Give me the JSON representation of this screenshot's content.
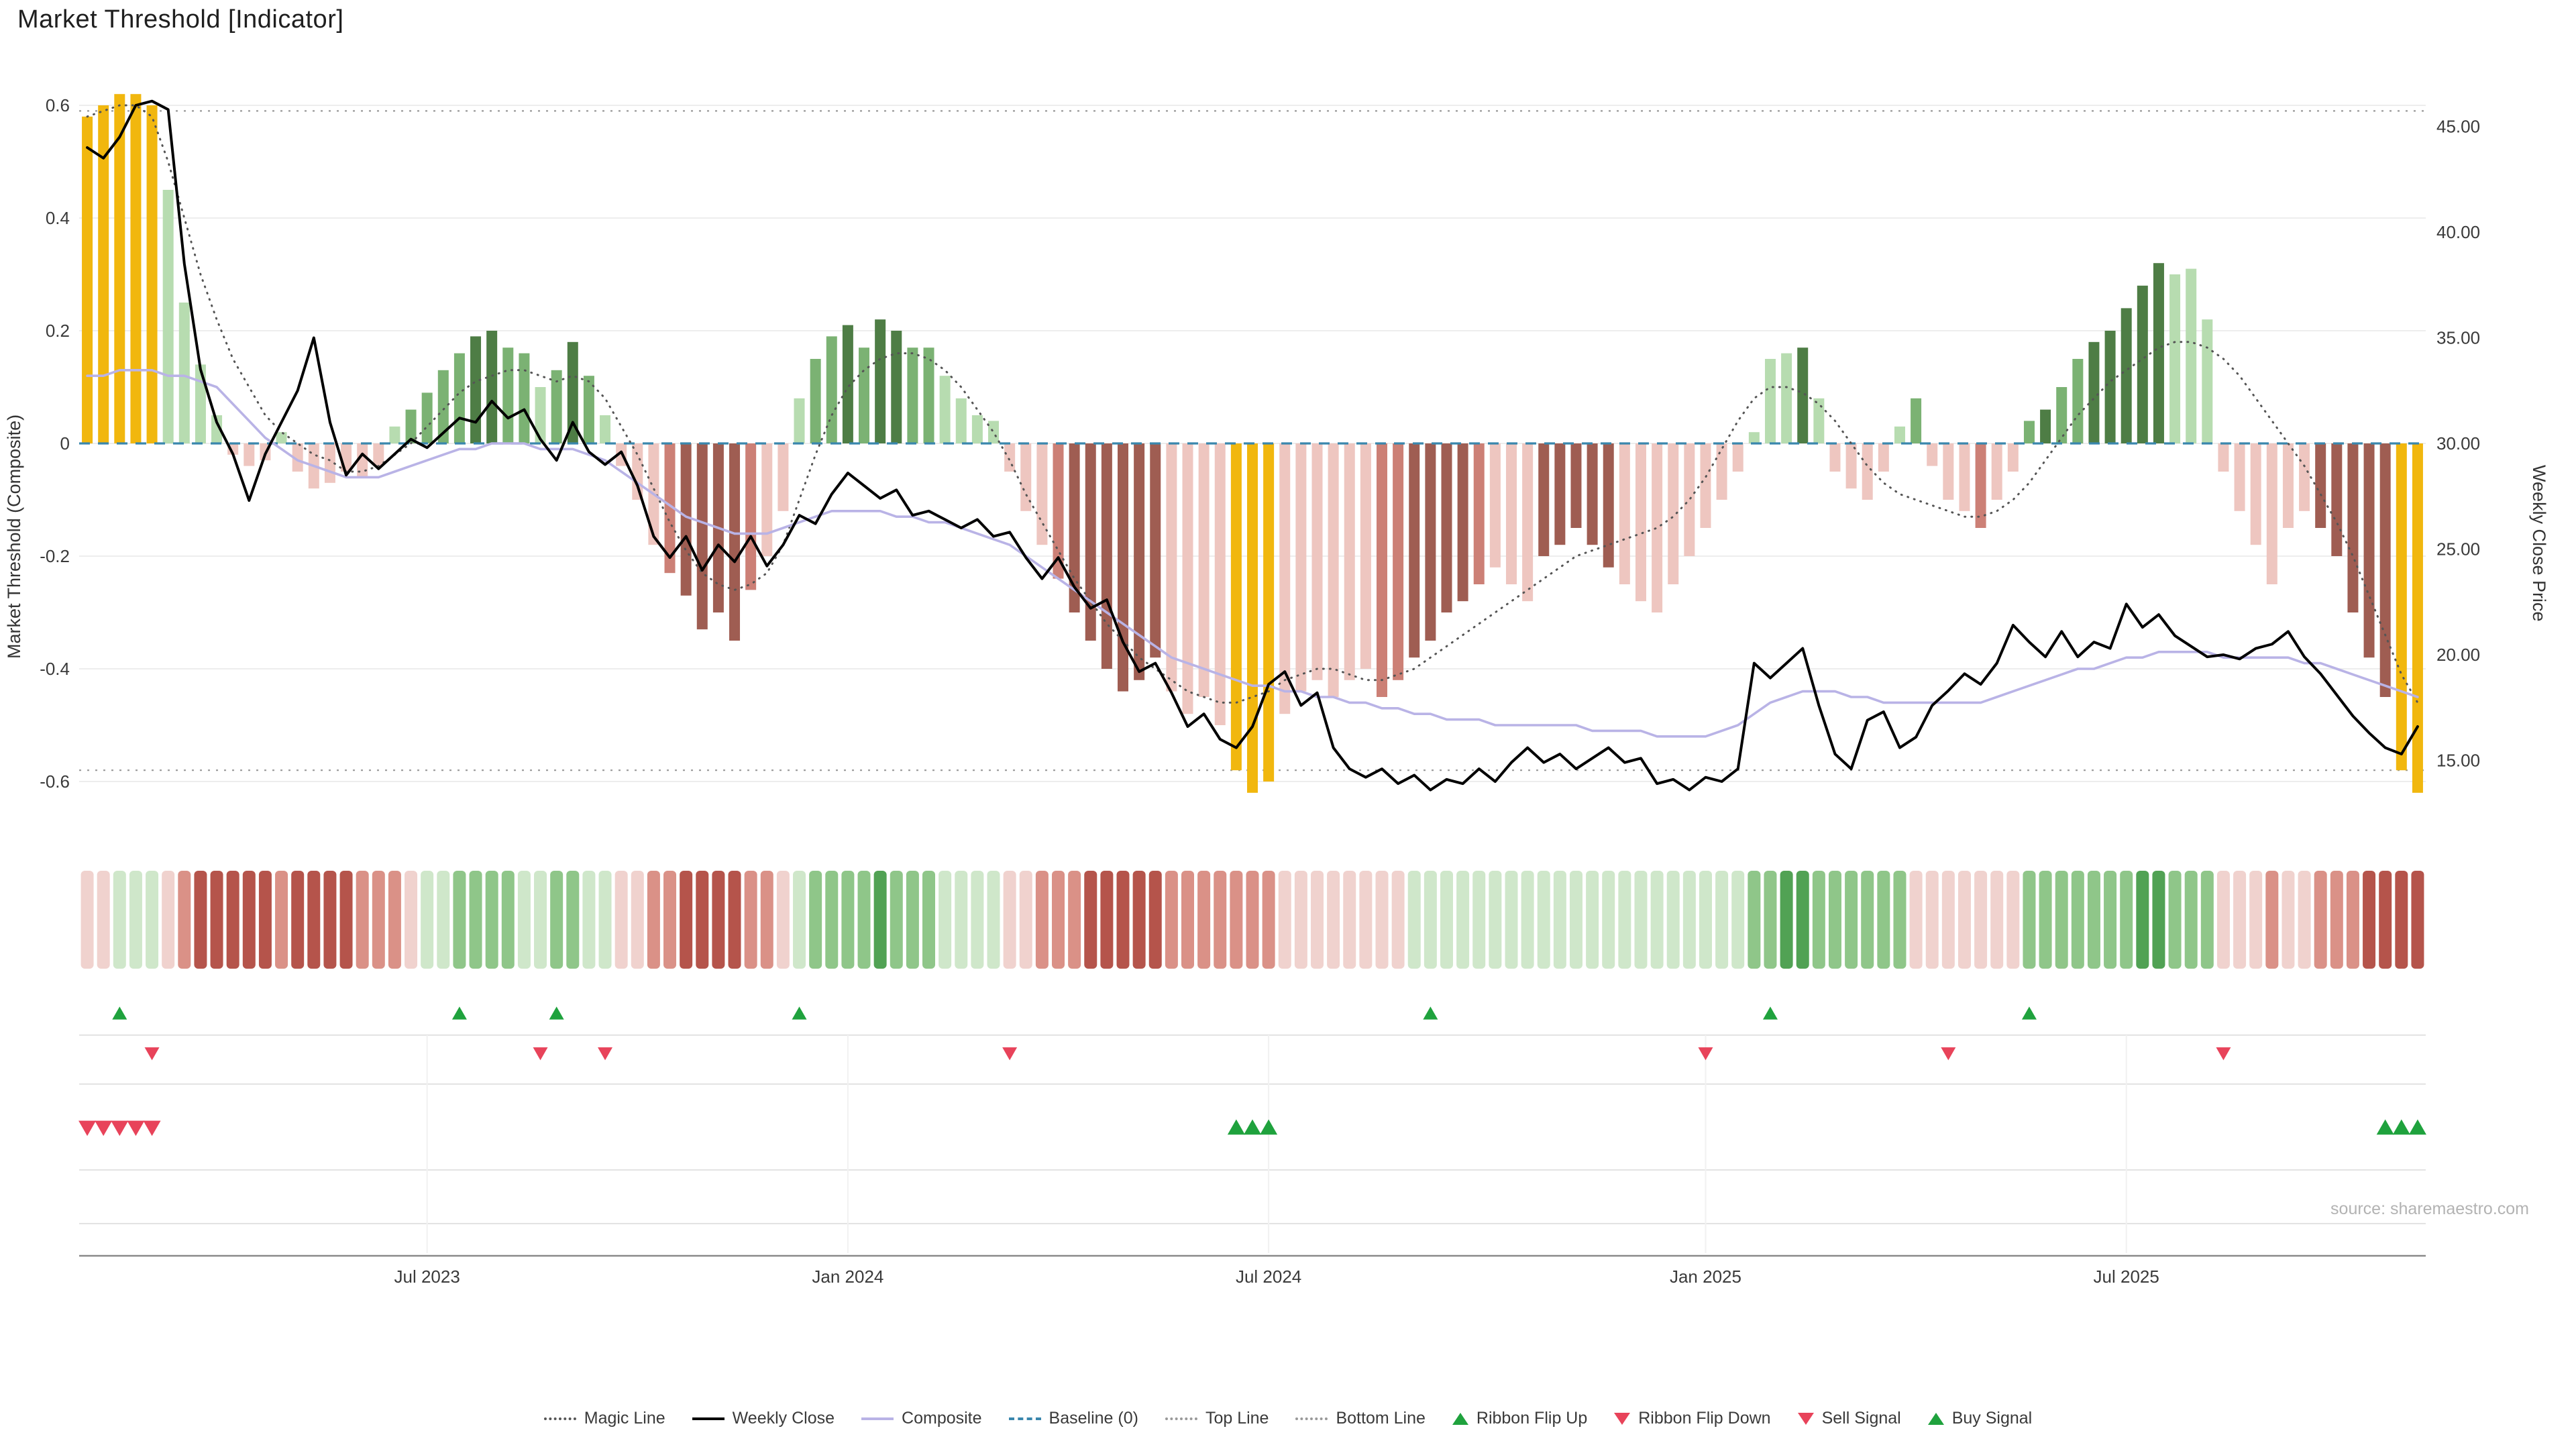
{
  "title": "Market Threshold [Indicator]",
  "source": "source: sharemaestro.com",
  "axes": {
    "left_title": "Market Threshold (Composite)",
    "right_title": "Weekly Close Price"
  },
  "colors": {
    "bar_palette": {
      "Y": "#f1b70e",
      "G1": "#b7dcb0",
      "G2": "#7bb273",
      "G3": "#4e7d45",
      "P1": "#eec6c0",
      "P2": "#cc8076",
      "P3": "#9f5d52"
    },
    "ribbon_palette": {
      "G1": "#cfe7ca",
      "G2": "#8fc689",
      "G3": "#51a254",
      "R1": "#f0d2ce",
      "R2": "#da9187",
      "R3": "#b5544b"
    },
    "lines": {
      "magic": "#555555",
      "weekly_close": "#000000",
      "composite": "#b9b3e6",
      "baseline": "#3a87ad",
      "top_line": "#999999",
      "bottom_line": "#999999"
    },
    "signals": {
      "up": "#1fa23d",
      "down": "#e8435a"
    },
    "grid": "#ededed"
  },
  "chart_data": {
    "type": "bar",
    "subtype": "weekly composite histogram with overlay lines, signal ribbon and markers",
    "weeks": 145,
    "left_axis": {
      "label": "Market Threshold (Composite)",
      "range": [
        -0.65,
        0.67
      ],
      "ticks": [
        {
          "v": 0.6,
          "label": "0.6"
        },
        {
          "v": 0.4,
          "label": "0.4"
        },
        {
          "v": 0.2,
          "label": "0.2"
        },
        {
          "v": 0,
          "label": "0"
        },
        {
          "v": -0.2,
          "label": "-0.2"
        },
        {
          "v": -0.4,
          "label": "-0.4"
        },
        {
          "v": -0.6,
          "label": "-0.6"
        }
      ]
    },
    "right_axis": {
      "label": "Weekly Close Price",
      "range": [
        13,
        46.5
      ],
      "ticks": [
        {
          "v": 45,
          "label": "45.00"
        },
        {
          "v": 40,
          "label": "40.00"
        },
        {
          "v": 35,
          "label": "35.00"
        },
        {
          "v": 30,
          "label": "30.00"
        },
        {
          "v": 25,
          "label": "25.00"
        },
        {
          "v": 20,
          "label": "20.00"
        },
        {
          "v": 15,
          "label": "15.00"
        }
      ]
    },
    "x_axis": {
      "ticks": [
        {
          "week": 21,
          "label": "Jul 2023"
        },
        {
          "week": 47,
          "label": "Jan 2024"
        },
        {
          "week": 73,
          "label": "Jul 2024"
        },
        {
          "week": 100,
          "label": "Jan 2025"
        },
        {
          "week": 126,
          "label": "Jul 2025"
        }
      ]
    },
    "reference_lines": {
      "baseline": 0,
      "top_line": 0.59,
      "bottom_line": -0.58
    },
    "bars": {
      "name": "Market Threshold (Composite)",
      "values": [
        0.58,
        0.6,
        0.62,
        0.62,
        0.6,
        0.45,
        0.25,
        0.14,
        0.05,
        -0.02,
        -0.04,
        -0.03,
        0.02,
        -0.05,
        -0.08,
        -0.07,
        -0.05,
        -0.06,
        -0.04,
        0.03,
        0.06,
        0.09,
        0.13,
        0.16,
        0.19,
        0.2,
        0.17,
        0.16,
        0.1,
        0.13,
        0.18,
        0.12,
        0.05,
        -0.04,
        -0.1,
        -0.18,
        -0.23,
        -0.27,
        -0.33,
        -0.3,
        -0.35,
        -0.26,
        -0.2,
        -0.12,
        0.08,
        0.15,
        0.19,
        0.21,
        0.17,
        0.22,
        0.2,
        0.17,
        0.17,
        0.12,
        0.08,
        0.05,
        0.04,
        -0.05,
        -0.12,
        -0.18,
        -0.24,
        -0.3,
        -0.35,
        -0.4,
        -0.44,
        -0.42,
        -0.38,
        -0.44,
        -0.48,
        -0.45,
        -0.5,
        -0.58,
        -0.62,
        -0.6,
        -0.48,
        -0.44,
        -0.42,
        -0.45,
        -0.42,
        -0.4,
        -0.45,
        -0.42,
        -0.38,
        -0.35,
        -0.3,
        -0.28,
        -0.25,
        -0.22,
        -0.25,
        -0.28,
        -0.2,
        -0.18,
        -0.15,
        -0.18,
        -0.22,
        -0.25,
        -0.28,
        -0.3,
        -0.25,
        -0.2,
        -0.15,
        -0.1,
        -0.05,
        0.02,
        0.15,
        0.16,
        0.17,
        0.08,
        -0.05,
        -0.08,
        -0.1,
        -0.05,
        0.03,
        0.08,
        -0.04,
        -0.1,
        -0.12,
        -0.15,
        -0.1,
        -0.05,
        0.04,
        0.06,
        0.1,
        0.15,
        0.18,
        0.2,
        0.24,
        0.28,
        0.32,
        0.3,
        0.31,
        0.22,
        -0.05,
        -0.12,
        -0.18,
        -0.25,
        -0.15,
        -0.12,
        -0.15,
        -0.2,
        -0.3,
        -0.38,
        -0.45,
        -0.58,
        -0.62
      ],
      "colors": [
        "Y",
        "Y",
        "Y",
        "Y",
        "Y",
        "G1",
        "G1",
        "G1",
        "G1",
        "P1",
        "P1",
        "P1",
        "G1",
        "P1",
        "P1",
        "P1",
        "P1",
        "P1",
        "P1",
        "G1",
        "G2",
        "G2",
        "G2",
        "G2",
        "G3",
        "G3",
        "G2",
        "G2",
        "G1",
        "G2",
        "G3",
        "G2",
        "G1",
        "P1",
        "P1",
        "P1",
        "P2",
        "P3",
        "P3",
        "P3",
        "P3",
        "P2",
        "P1",
        "P1",
        "G1",
        "G2",
        "G2",
        "G3",
        "G2",
        "G3",
        "G3",
        "G2",
        "G2",
        "G1",
        "G1",
        "G1",
        "G1",
        "P1",
        "P1",
        "P1",
        "P2",
        "P3",
        "P3",
        "P3",
        "P3",
        "P3",
        "P3",
        "P1",
        "P1",
        "P1",
        "P1",
        "Y",
        "Y",
        "Y",
        "P1",
        "P1",
        "P1",
        "P1",
        "P1",
        "P1",
        "P2",
        "P2",
        "P3",
        "P3",
        "P3",
        "P3",
        "P2",
        "P1",
        "P1",
        "P1",
        "P3",
        "P3",
        "P3",
        "P3",
        "P3",
        "P1",
        "P1",
        "P1",
        "P1",
        "P1",
        "P1",
        "P1",
        "P1",
        "G1",
        "G1",
        "G1",
        "G3",
        "G1",
        "P1",
        "P1",
        "P1",
        "P1",
        "G1",
        "G2",
        "P1",
        "P1",
        "P1",
        "P2",
        "P1",
        "P1",
        "G2",
        "G3",
        "G2",
        "G2",
        "G3",
        "G3",
        "G3",
        "G3",
        "G3",
        "G1",
        "G1",
        "G1",
        "P1",
        "P1",
        "P1",
        "P1",
        "P1",
        "P1",
        "P3",
        "P3",
        "P3",
        "P3",
        "P3",
        "Y",
        "Y"
      ]
    },
    "lines": {
      "weekly_close": [
        44.0,
        43.5,
        44.5,
        46.0,
        46.2,
        45.8,
        38.5,
        33.5,
        31.0,
        29.5,
        27.3,
        29.5,
        31.0,
        32.5,
        35.0,
        31.0,
        28.5,
        29.5,
        28.8,
        29.5,
        30.2,
        29.8,
        30.5,
        31.2,
        31.0,
        32.0,
        31.2,
        31.6,
        30.2,
        29.2,
        31.0,
        29.6,
        29.0,
        29.6,
        28.0,
        25.6,
        24.6,
        25.6,
        24.0,
        25.2,
        24.4,
        25.6,
        24.2,
        25.2,
        26.6,
        26.2,
        27.6,
        28.6,
        28.0,
        27.4,
        27.8,
        26.6,
        26.8,
        26.4,
        26.0,
        26.4,
        25.6,
        25.8,
        24.6,
        23.6,
        24.6,
        23.2,
        22.2,
        22.6,
        20.6,
        19.2,
        19.6,
        18.2,
        16.6,
        17.2,
        16.0,
        15.6,
        16.6,
        18.6,
        19.2,
        17.6,
        18.2,
        15.6,
        14.6,
        14.2,
        14.6,
        13.9,
        14.3,
        13.6,
        14.1,
        13.9,
        14.6,
        14.0,
        14.9,
        15.6,
        14.9,
        15.3,
        14.6,
        15.1,
        15.6,
        14.9,
        15.1,
        13.9,
        14.1,
        13.6,
        14.2,
        14.0,
        14.6,
        19.6,
        18.9,
        19.6,
        20.3,
        17.6,
        15.3,
        14.6,
        16.9,
        17.3,
        15.6,
        16.1,
        17.6,
        18.3,
        19.1,
        18.6,
        19.6,
        21.4,
        20.6,
        19.9,
        21.1,
        19.9,
        20.6,
        20.3,
        22.4,
        21.3,
        21.9,
        20.9,
        20.4,
        19.9,
        20.0,
        19.8,
        20.3,
        20.5,
        21.1,
        19.9,
        19.1,
        18.1,
        17.1,
        16.3,
        15.6,
        15.3,
        16.6
      ],
      "magic": [
        0.58,
        0.59,
        0.6,
        0.6,
        0.58,
        0.5,
        0.4,
        0.3,
        0.22,
        0.15,
        0.1,
        0.05,
        0.02,
        0.0,
        -0.02,
        -0.03,
        -0.05,
        -0.05,
        -0.04,
        -0.02,
        0.0,
        0.03,
        0.06,
        0.09,
        0.11,
        0.12,
        0.13,
        0.13,
        0.12,
        0.11,
        0.12,
        0.11,
        0.08,
        0.03,
        -0.02,
        -0.08,
        -0.14,
        -0.19,
        -0.23,
        -0.25,
        -0.26,
        -0.25,
        -0.23,
        -0.18,
        -0.1,
        -0.02,
        0.05,
        0.1,
        0.13,
        0.15,
        0.16,
        0.16,
        0.15,
        0.13,
        0.1,
        0.06,
        0.02,
        -0.03,
        -0.09,
        -0.14,
        -0.19,
        -0.24,
        -0.28,
        -0.32,
        -0.35,
        -0.38,
        -0.4,
        -0.42,
        -0.44,
        -0.45,
        -0.46,
        -0.46,
        -0.45,
        -0.44,
        -0.42,
        -0.41,
        -0.4,
        -0.4,
        -0.41,
        -0.42,
        -0.42,
        -0.41,
        -0.4,
        -0.38,
        -0.36,
        -0.34,
        -0.32,
        -0.3,
        -0.28,
        -0.26,
        -0.24,
        -0.22,
        -0.2,
        -0.19,
        -0.18,
        -0.17,
        -0.16,
        -0.15,
        -0.13,
        -0.1,
        -0.06,
        -0.01,
        0.04,
        0.08,
        0.1,
        0.1,
        0.09,
        0.07,
        0.04,
        0.0,
        -0.04,
        -0.07,
        -0.09,
        -0.1,
        -0.11,
        -0.12,
        -0.13,
        -0.13,
        -0.12,
        -0.1,
        -0.07,
        -0.03,
        0.01,
        0.05,
        0.08,
        0.11,
        0.13,
        0.15,
        0.17,
        0.18,
        0.18,
        0.17,
        0.15,
        0.12,
        0.08,
        0.04,
        0.0,
        -0.04,
        -0.09,
        -0.14,
        -0.2,
        -0.27,
        -0.34,
        -0.41,
        -0.46
      ],
      "composite": [
        0.12,
        0.12,
        0.13,
        0.13,
        0.13,
        0.12,
        0.12,
        0.11,
        0.1,
        0.07,
        0.04,
        0.01,
        -0.01,
        -0.03,
        -0.04,
        -0.05,
        -0.06,
        -0.06,
        -0.06,
        -0.05,
        -0.04,
        -0.03,
        -0.02,
        -0.01,
        -0.01,
        0.0,
        0.0,
        0.0,
        -0.01,
        -0.01,
        -0.01,
        -0.02,
        -0.03,
        -0.05,
        -0.07,
        -0.09,
        -0.11,
        -0.13,
        -0.14,
        -0.15,
        -0.16,
        -0.16,
        -0.16,
        -0.15,
        -0.14,
        -0.13,
        -0.12,
        -0.12,
        -0.12,
        -0.12,
        -0.13,
        -0.13,
        -0.14,
        -0.14,
        -0.15,
        -0.16,
        -0.17,
        -0.18,
        -0.2,
        -0.22,
        -0.24,
        -0.26,
        -0.28,
        -0.3,
        -0.32,
        -0.34,
        -0.36,
        -0.38,
        -0.39,
        -0.4,
        -0.41,
        -0.42,
        -0.43,
        -0.43,
        -0.44,
        -0.44,
        -0.45,
        -0.45,
        -0.46,
        -0.46,
        -0.47,
        -0.47,
        -0.48,
        -0.48,
        -0.49,
        -0.49,
        -0.49,
        -0.5,
        -0.5,
        -0.5,
        -0.5,
        -0.5,
        -0.5,
        -0.51,
        -0.51,
        -0.51,
        -0.51,
        -0.52,
        -0.52,
        -0.52,
        -0.52,
        -0.51,
        -0.5,
        -0.48,
        -0.46,
        -0.45,
        -0.44,
        -0.44,
        -0.44,
        -0.45,
        -0.45,
        -0.46,
        -0.46,
        -0.46,
        -0.46,
        -0.46,
        -0.46,
        -0.46,
        -0.45,
        -0.44,
        -0.43,
        -0.42,
        -0.41,
        -0.4,
        -0.4,
        -0.39,
        -0.38,
        -0.38,
        -0.37,
        -0.37,
        -0.37,
        -0.37,
        -0.38,
        -0.38,
        -0.38,
        -0.38,
        -0.38,
        -0.39,
        -0.39,
        -0.4,
        -0.41,
        -0.42,
        -0.43,
        -0.44,
        -0.45
      ]
    },
    "ribbon": [
      "R1",
      "R1",
      "G1",
      "G1",
      "G1",
      "R1",
      "R2",
      "R3",
      "R3",
      "R3",
      "R3",
      "R3",
      "R2",
      "R3",
      "R3",
      "R3",
      "R3",
      "R2",
      "R2",
      "R2",
      "R1",
      "G1",
      "G1",
      "G2",
      "G2",
      "G2",
      "G2",
      "G1",
      "G1",
      "G2",
      "G2",
      "G1",
      "G1",
      "R1",
      "R1",
      "R2",
      "R2",
      "R3",
      "R3",
      "R3",
      "R3",
      "R2",
      "R2",
      "R1",
      "G1",
      "G2",
      "G2",
      "G2",
      "G2",
      "G3",
      "G2",
      "G2",
      "G2",
      "G1",
      "G1",
      "G1",
      "G1",
      "R1",
      "R1",
      "R2",
      "R2",
      "R2",
      "R3",
      "R3",
      "R3",
      "R3",
      "R3",
      "R2",
      "R2",
      "R2",
      "R2",
      "R2",
      "R2",
      "R2",
      "R1",
      "R1",
      "R1",
      "R1",
      "R1",
      "R1",
      "R1",
      "R1",
      "G1",
      "G1",
      "G1",
      "G1",
      "G1",
      "G1",
      "G1",
      "G1",
      "G1",
      "G1",
      "G1",
      "G1",
      "G1",
      "G1",
      "G1",
      "G1",
      "G1",
      "G1",
      "G1",
      "G1",
      "G1",
      "G2",
      "G2",
      "G3",
      "G3",
      "G2",
      "G2",
      "G2",
      "G2",
      "G2",
      "G2",
      "R1",
      "R1",
      "R1",
      "R1",
      "R1",
      "R1",
      "R1",
      "G2",
      "G2",
      "G2",
      "G2",
      "G2",
      "G2",
      "G2",
      "G3",
      "G3",
      "G2",
      "G2",
      "G2",
      "R1",
      "R1",
      "R1",
      "R2",
      "R1",
      "R1",
      "R2",
      "R2",
      "R2",
      "R3",
      "R3",
      "R3",
      "R3"
    ],
    "signals": {
      "ribbon_flip_up_weeks": [
        2,
        23,
        29,
        44,
        83,
        104,
        120
      ],
      "ribbon_flip_down_weeks": [
        4,
        28,
        32,
        57,
        100,
        115,
        132
      ],
      "sell_signal_weeks": [
        0,
        1,
        2,
        3,
        4
      ],
      "buy_signal_weeks": [
        71,
        72,
        73,
        142,
        143,
        144
      ]
    }
  },
  "legend": {
    "items": [
      {
        "label": "Magic Line",
        "icon": "dotted-line",
        "color": "#555555"
      },
      {
        "label": "Weekly Close",
        "icon": "solid-line",
        "color": "#000000"
      },
      {
        "label": "Composite",
        "icon": "solid-line",
        "color": "#b9b3e6"
      },
      {
        "label": "Baseline (0)",
        "icon": "dashed-line",
        "color": "#3a87ad"
      },
      {
        "label": "Top Line",
        "icon": "dotted-line",
        "color": "#999999"
      },
      {
        "label": "Bottom Line",
        "icon": "dotted-line",
        "color": "#999999"
      },
      {
        "label": "Ribbon Flip Up",
        "icon": "triangle-up",
        "color": "#1fa23d"
      },
      {
        "label": "Ribbon Flip Down",
        "icon": "triangle-down",
        "color": "#e8435a"
      },
      {
        "label": "Sell Signal",
        "icon": "triangle-down",
        "color": "#e8435a"
      },
      {
        "label": "Buy Signal",
        "icon": "triangle-up",
        "color": "#1fa23d"
      }
    ]
  }
}
